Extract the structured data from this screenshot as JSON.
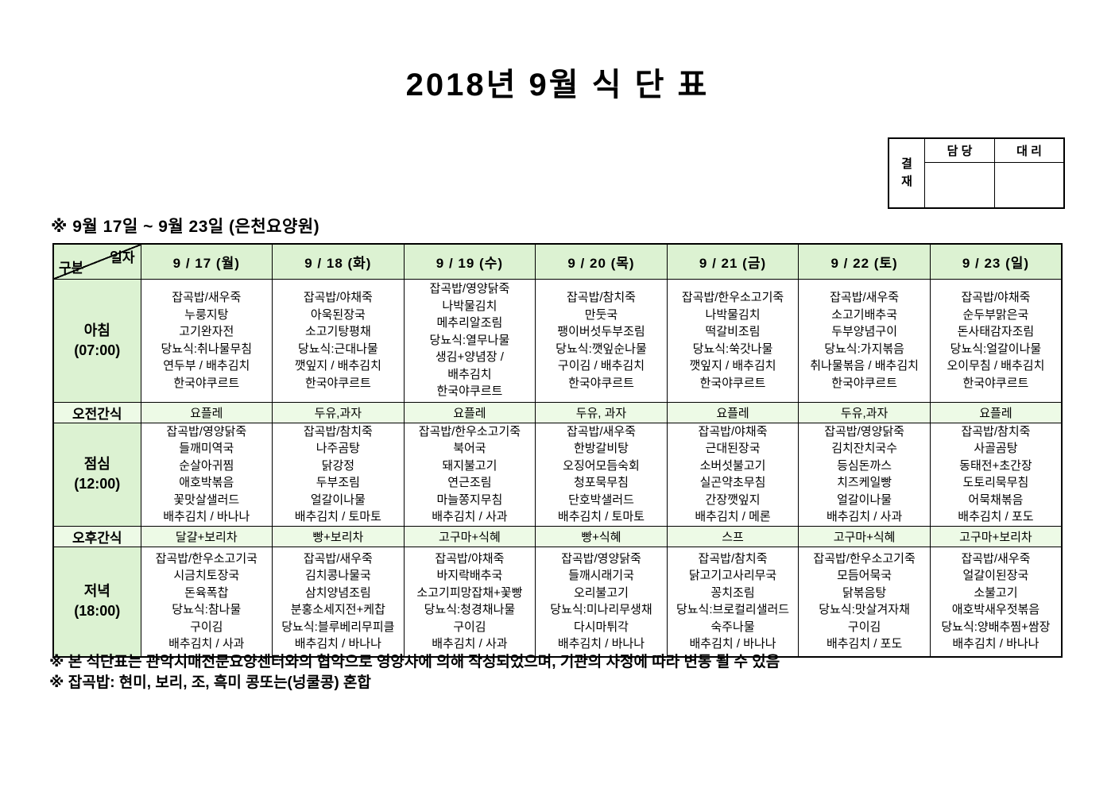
{
  "title": "2018년  9월  식  단  표",
  "approval": {
    "side_label_line1": "결",
    "side_label_line2": "재",
    "manager_label": "담 당",
    "deputy_label": "대 리"
  },
  "subtitle": "※  9월  17일  ~  9월  23일  (은천요양원)",
  "table": {
    "corner": {
      "top": "일자",
      "bottom": "구분"
    },
    "columns": [
      "9 / 17 (월)",
      "9 / 18 (화)",
      "9 / 19 (수)",
      "9 / 20 (목)",
      "9 / 21 (금)",
      "9 / 22 (토)",
      "9 / 23 (일)"
    ],
    "rows": [
      {
        "type": "meal",
        "label": "아침",
        "time": "(07:00)",
        "cells": [
          [
            "잡곡밥/새우죽",
            "누룽지탕",
            "고기완자전",
            "당뇨식:취나물무침",
            "연두부 / 배추김치",
            "한국야쿠르트"
          ],
          [
            "잡곡밥/야채죽",
            "아욱된장국",
            "소고기탕평채",
            "당뇨식:근대나물",
            "깻잎지 / 배추김치",
            "한국야쿠르트"
          ],
          [
            "잡곡밥/영양닭죽",
            "나박물김치",
            "메추리알조림",
            "당뇨식:열무나물",
            "생김+양념장 /",
            "배추김치",
            "한국야쿠르트"
          ],
          [
            "잡곡밥/참치죽",
            "만둣국",
            "팽이버섯두부조림",
            "당뇨식:깻잎순나물",
            "구이김 / 배추김치",
            "한국야쿠르트"
          ],
          [
            "잡곡밥/한우소고기죽",
            "나박물김치",
            "떡갈비조림",
            "당뇨식:쑥갓나물",
            "깻잎지 / 배추김치",
            "한국야쿠르트"
          ],
          [
            "잡곡밥/새우죽",
            "소고기배추국",
            "두부양념구이",
            "당뇨식:가지볶음",
            "취나물볶음 / 배추김치",
            "한국야쿠르트"
          ],
          [
            "잡곡밥/야채죽",
            "순두부맑은국",
            "돈사태감자조림",
            "당뇨식:얼갈이나물",
            "오이무침 / 배추김치",
            "한국야쿠르트"
          ]
        ]
      },
      {
        "type": "snack",
        "label": "오전간식",
        "cells": [
          "요플레",
          "두유,과자",
          "요플레",
          "두유, 과자",
          "요플레",
          "두유,과자",
          "요플레"
        ]
      },
      {
        "type": "meal",
        "label": "점심",
        "time": "(12:00)",
        "cells": [
          [
            "잡곡밥/영양닭죽",
            "들깨미역국",
            "순살아귀찜",
            "애호박볶음",
            "꽃맛살샐러드",
            "배추김치 / 바나나"
          ],
          [
            "잡곡밥/참치죽",
            "나주곰탕",
            "닭강정",
            "두부조림",
            "얼갈이나물",
            "배추김치 / 토마토"
          ],
          [
            "잡곡밥/한우소고기죽",
            "북어국",
            "돼지불고기",
            "연근조림",
            "마늘쫑지무침",
            "배추김치 / 사과"
          ],
          [
            "잡곡밥/새우죽",
            "한방갈비탕",
            "오징어모듬숙회",
            "청포묵무침",
            "단호박샐러드",
            "배추김치 / 토마토"
          ],
          [
            "잡곡밥/야채죽",
            "근대된장국",
            "소버섯불고기",
            "실곤약초무침",
            "간장깻잎지",
            "배추김치 / 메론"
          ],
          [
            "잡곡밥/영양닭죽",
            "김치잔치국수",
            "등심돈까스",
            "치즈케일빵",
            "얼갈이나물",
            "배추김치 / 사과"
          ],
          [
            "잡곡밥/참치죽",
            "사골곰탕",
            "동태전+초간장",
            "도토리묵무침",
            "어묵채볶음",
            "배추김치 / 포도"
          ]
        ]
      },
      {
        "type": "snack",
        "label": "오후간식",
        "cells": [
          "달걀+보리차",
          "빵+보리차",
          "고구마+식혜",
          "빵+식혜",
          "스프",
          "고구마+식혜",
          "고구마+보리차"
        ]
      },
      {
        "type": "meal",
        "label": "저녁",
        "time": "(18:00)",
        "cells": [
          [
            "잡곡밥/한우소고기국",
            "시금치토장국",
            "돈육폭찹",
            "당뇨식:참나물",
            "구이김",
            "배추김치 / 사과"
          ],
          [
            "잡곡밥/새우죽",
            "김치콩나물국",
            "삼치양념조림",
            "분홍소세지전+케찹",
            "당뇨식:블루베리무피클",
            "배추김치 / 바나나"
          ],
          [
            "잡곡밥/야채죽",
            "바지락배추국",
            "소고기피망잡채+꽃빵",
            "당뇨식:청경채나물",
            "구이김",
            "배추김치 / 사과"
          ],
          [
            "잡곡밥/영양닭죽",
            "들깨시래기국",
            "오리불고기",
            "당뇨식:미나리무생채",
            "다시마튀각",
            "배추김치 / 바나나"
          ],
          [
            "잡곡밥/참치죽",
            "닭고기고사리무국",
            "꽁치조림",
            "당뇨식:브로컬리샐러드",
            "숙주나물",
            "배추김치 / 바나나"
          ],
          [
            "잡곡밥/한우소고기죽",
            "모듬어묵국",
            "닭볶음탕",
            "당뇨식:맛살겨자채",
            "구이김",
            "배추김치 / 포도"
          ],
          [
            "잡곡밥/새우죽",
            "얼갈이된장국",
            "소불고기",
            "애호박새우젓볶음",
            "당뇨식:양배추찜+쌈장",
            "배추김치 / 바나나"
          ]
        ]
      }
    ]
  },
  "notes": [
    "※  본  식단표는  관악치매전문요양센터와의  협약으로  영양사에  의해  작성되었으며,  기관의  사정에  따라  변동  될  수  있음",
    "※  잡곡밥:  현미,  보리,  조,  흑미  콩또는(넝쿨콩)  혼합"
  ],
  "colors": {
    "header_bg": "#dcf2d2",
    "snack_bg": "#edfae6",
    "border": "#000000"
  }
}
